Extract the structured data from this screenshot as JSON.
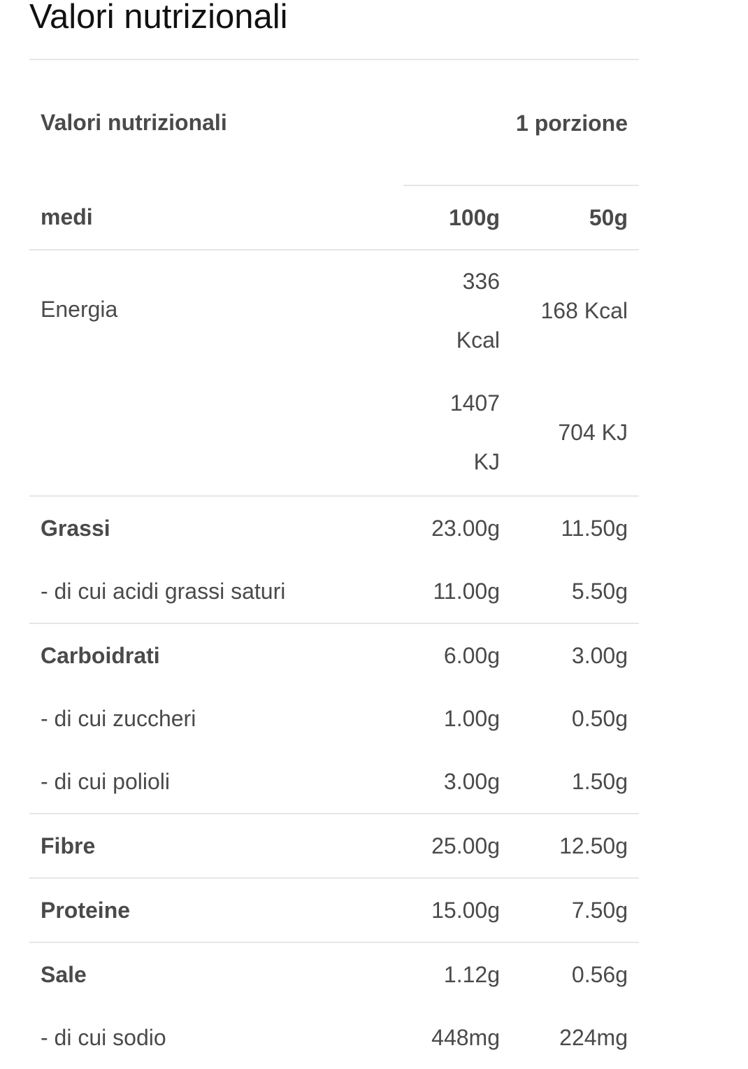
{
  "title": "Valori nutrizionali",
  "table": {
    "header": {
      "label_top": "Valori nutrizionali",
      "label_bottom": "medi",
      "portion": "1 porzione",
      "col_100g": "100g",
      "col_portion": "50g"
    },
    "energy": {
      "label": "Energia",
      "kcal_100g": "336 Kcal",
      "kj_100g": "1407 KJ",
      "kcal_portion": "168 Kcal",
      "kj_portion": "704 KJ"
    },
    "rows": [
      {
        "label": "Grassi",
        "v100": "23.00g",
        "vp": "11.50g",
        "bold": true
      },
      {
        "label": "- di cui acidi grassi saturi",
        "v100": "11.00g",
        "vp": "5.50g"
      },
      {
        "label": "Carboidrati",
        "v100": "6.00g",
        "vp": "3.00g",
        "bold": true
      },
      {
        "label": "- di cui zuccheri",
        "v100": "1.00g",
        "vp": "0.50g"
      },
      {
        "label": "- di cui polioli",
        "v100": "3.00g",
        "vp": "1.50g"
      },
      {
        "label": "Fibre",
        "v100": "25.00g",
        "vp": "12.50g",
        "bold": true
      },
      {
        "label": "Proteine",
        "v100": "15.00g",
        "vp": "7.50g",
        "bold": true
      },
      {
        "label": "Sale",
        "v100": "1.12g",
        "vp": "0.56g",
        "bold": true
      },
      {
        "label": "- di cui sodio",
        "v100": "448mg",
        "vp": "224mg"
      }
    ]
  }
}
